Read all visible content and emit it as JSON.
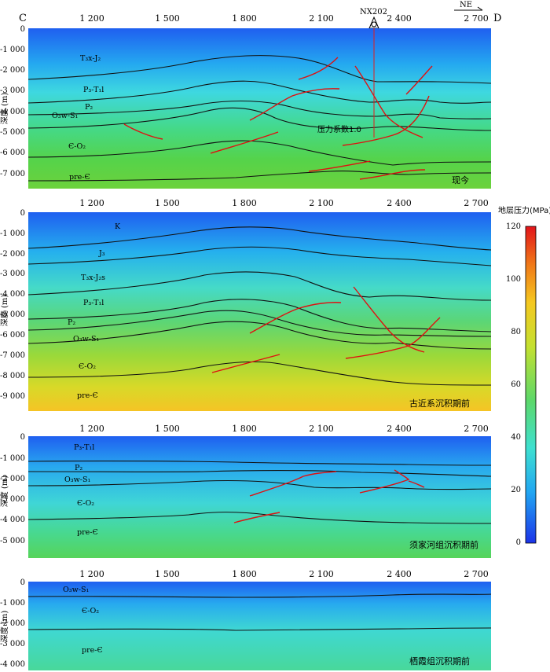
{
  "section": {
    "start_label": "C",
    "end_label": "D",
    "north_arrow": "NE",
    "well_name": "NX202",
    "x_ticks": [
      "1 200",
      "1 500",
      "1 800",
      "2 100",
      "2 400",
      "2 700"
    ],
    "depth_axis_label": "深度 (m)"
  },
  "panels": [
    {
      "stage_label": "现今",
      "y_ticks": [
        "0",
        "-1 000",
        "-2 000",
        "-3 000",
        "-4 000",
        "-5 000",
        "-6 000",
        "-7 000"
      ],
      "strata": [
        "T₃x-J₂",
        "P₃-T₁l",
        "P₂",
        "O₃w-S₁",
        "Є-O₂",
        "pre-Є"
      ],
      "annotation": "压力系数1.0"
    },
    {
      "stage_label": "古近系沉积期前",
      "y_ticks": [
        "0",
        "-1 000",
        "-2 000",
        "-3 000",
        "-4 000",
        "-5 000",
        "-6 000",
        "-7 000",
        "-8 000",
        "-9 000"
      ],
      "strata": [
        "K",
        "J₃",
        "T₃x-J₂s",
        "P₃-T₁l",
        "P₂",
        "O₃w-S₁",
        "Є-O₂",
        "pre-Є"
      ]
    },
    {
      "stage_label": "须家河组沉积期前",
      "y_ticks": [
        "0",
        "-1 000",
        "-2 000",
        "-3 000",
        "-4 000",
        "-5 000"
      ],
      "strata": [
        "P₃-T₁l",
        "P₂",
        "O₃w-S₁",
        "Є-O₂",
        "pre-Є"
      ]
    },
    {
      "stage_label": "栖霞组沉积期前",
      "y_ticks": [
        "0",
        "-1 000",
        "-2 000",
        "-3 000",
        "-4 000"
      ],
      "strata": [
        "O₃w-S₁",
        "Є-O₂",
        "pre-Є"
      ]
    }
  ],
  "colorbar": {
    "title": "地层压力(MPa)",
    "ticks": [
      "0",
      "20",
      "40",
      "60",
      "80",
      "100",
      "120"
    ]
  }
}
